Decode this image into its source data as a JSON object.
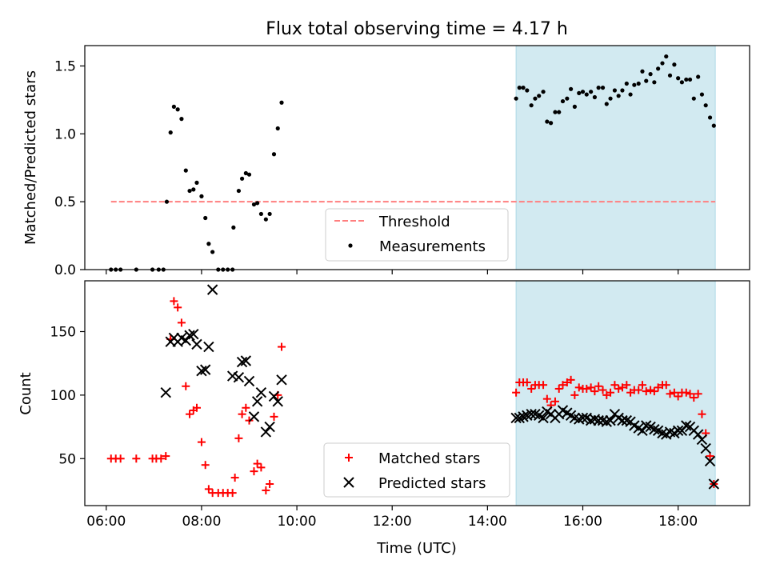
{
  "figure": {
    "title": "Flux total observing time = 4.17 h",
    "xlabel": "Time (UTC)"
  },
  "colors": {
    "shade": "#add8e6",
    "threshold": "#ff7f7f",
    "measurements": "#000000",
    "matched": "#ff0000",
    "predicted": "#000000"
  },
  "chart_data": [
    {
      "type": "scatter",
      "panel": "top",
      "title": "Flux total observing time = 4.17 h",
      "xlabel": "",
      "ylabel": "Matched/Predicted stars",
      "xlim": [
        5.55,
        19.5
      ],
      "ylim": [
        0.0,
        1.65
      ],
      "x_ticks": [
        6,
        8,
        10,
        12,
        14,
        16,
        18
      ],
      "x_tick_labels": [],
      "y_ticks": [
        0.0,
        0.5,
        1.0,
        1.5
      ],
      "y_tick_labels": [
        "0.0",
        "0.5",
        "1.0",
        "1.5"
      ],
      "grid": false,
      "legend_position": "lower-center",
      "shaded_span": [
        14.6,
        18.78
      ],
      "threshold": {
        "name": "Threshold",
        "x_range": [
          6.1,
          18.78
        ],
        "y": 0.5,
        "style": "dashed"
      },
      "series": [
        {
          "name": "Measurements",
          "marker": "dot",
          "points": [
            [
              6.1,
              0
            ],
            [
              6.2,
              0
            ],
            [
              6.3,
              0
            ],
            [
              6.63,
              0
            ],
            [
              6.97,
              0
            ],
            [
              7.1,
              0
            ],
            [
              7.2,
              0
            ],
            [
              7.27,
              0.5
            ],
            [
              7.35,
              1.01
            ],
            [
              7.42,
              1.2
            ],
            [
              7.5,
              1.18
            ],
            [
              7.58,
              1.11
            ],
            [
              7.67,
              0.73
            ],
            [
              7.75,
              0.58
            ],
            [
              7.83,
              0.59
            ],
            [
              7.9,
              0.64
            ],
            [
              8.0,
              0.54
            ],
            [
              8.08,
              0.38
            ],
            [
              8.15,
              0.19
            ],
            [
              8.23,
              0.13
            ],
            [
              8.35,
              0
            ],
            [
              8.45,
              0
            ],
            [
              8.55,
              0
            ],
            [
              8.65,
              0
            ],
            [
              8.67,
              0.31
            ],
            [
              8.78,
              0.58
            ],
            [
              8.85,
              0.67
            ],
            [
              8.93,
              0.71
            ],
            [
              9.0,
              0.7
            ],
            [
              9.1,
              0.48
            ],
            [
              9.17,
              0.49
            ],
            [
              9.25,
              0.41
            ],
            [
              9.35,
              0.37
            ],
            [
              9.43,
              0.41
            ],
            [
              9.52,
              0.85
            ],
            [
              9.6,
              1.04
            ],
            [
              9.68,
              1.23
            ],
            [
              14.6,
              1.26
            ],
            [
              14.67,
              1.34
            ],
            [
              14.75,
              1.34
            ],
            [
              14.83,
              1.32
            ],
            [
              14.92,
              1.21
            ],
            [
              15.0,
              1.26
            ],
            [
              15.08,
              1.28
            ],
            [
              15.17,
              1.31
            ],
            [
              15.25,
              1.09
            ],
            [
              15.33,
              1.08
            ],
            [
              15.42,
              1.16
            ],
            [
              15.5,
              1.16
            ],
            [
              15.58,
              1.24
            ],
            [
              15.67,
              1.26
            ],
            [
              15.75,
              1.33
            ],
            [
              15.83,
              1.2
            ],
            [
              15.92,
              1.3
            ],
            [
              16.0,
              1.31
            ],
            [
              16.08,
              1.29
            ],
            [
              16.17,
              1.31
            ],
            [
              16.25,
              1.27
            ],
            [
              16.33,
              1.34
            ],
            [
              16.42,
              1.34
            ],
            [
              16.5,
              1.22
            ],
            [
              16.58,
              1.26
            ],
            [
              16.67,
              1.32
            ],
            [
              16.75,
              1.28
            ],
            [
              16.83,
              1.32
            ],
            [
              16.92,
              1.37
            ],
            [
              17.0,
              1.29
            ],
            [
              17.08,
              1.36
            ],
            [
              17.17,
              1.37
            ],
            [
              17.25,
              1.46
            ],
            [
              17.33,
              1.39
            ],
            [
              17.42,
              1.44
            ],
            [
              17.5,
              1.38
            ],
            [
              17.58,
              1.48
            ],
            [
              17.67,
              1.52
            ],
            [
              17.75,
              1.57
            ],
            [
              17.83,
              1.43
            ],
            [
              17.92,
              1.51
            ],
            [
              18.0,
              1.41
            ],
            [
              18.08,
              1.38
            ],
            [
              18.17,
              1.4
            ],
            [
              18.25,
              1.4
            ],
            [
              18.33,
              1.26
            ],
            [
              18.42,
              1.42
            ],
            [
              18.5,
              1.29
            ],
            [
              18.58,
              1.21
            ],
            [
              18.67,
              1.12
            ],
            [
              18.75,
              1.06
            ]
          ]
        }
      ]
    },
    {
      "type": "scatter",
      "panel": "bottom",
      "xlabel": "Time (UTC)",
      "ylabel": "Count",
      "xlim": [
        5.55,
        19.5
      ],
      "ylim": [
        13,
        190
      ],
      "x_ticks": [
        6,
        8,
        10,
        12,
        14,
        16,
        18
      ],
      "x_tick_labels": [
        "06:00",
        "08:00",
        "10:00",
        "12:00",
        "14:00",
        "16:00",
        "18:00"
      ],
      "y_ticks": [
        50,
        100,
        150
      ],
      "y_tick_labels": [
        "50",
        "100",
        "150"
      ],
      "grid": false,
      "legend_position": "lower-center",
      "shaded_span": [
        14.6,
        18.78
      ],
      "series": [
        {
          "name": "Matched stars",
          "marker": "plus",
          "points": [
            [
              6.1,
              50
            ],
            [
              6.2,
              50
            ],
            [
              6.3,
              50
            ],
            [
              6.63,
              50
            ],
            [
              6.97,
              50
            ],
            [
              7.05,
              50
            ],
            [
              7.15,
              50
            ],
            [
              7.25,
              52
            ],
            [
              7.35,
              144
            ],
            [
              7.42,
              174
            ],
            [
              7.5,
              169
            ],
            [
              7.58,
              157
            ],
            [
              7.67,
              107
            ],
            [
              7.75,
              85
            ],
            [
              7.83,
              88
            ],
            [
              7.9,
              90
            ],
            [
              8.0,
              63
            ],
            [
              8.08,
              45
            ],
            [
              8.15,
              26
            ],
            [
              8.23,
              23
            ],
            [
              8.35,
              23
            ],
            [
              8.45,
              23
            ],
            [
              8.55,
              23
            ],
            [
              8.65,
              23
            ],
            [
              8.7,
              35
            ],
            [
              8.78,
              66
            ],
            [
              8.85,
              85
            ],
            [
              8.93,
              90
            ],
            [
              9.0,
              80
            ],
            [
              9.1,
              40
            ],
            [
              9.17,
              46
            ],
            [
              9.25,
              43
            ],
            [
              9.35,
              25
            ],
            [
              9.43,
              30
            ],
            [
              9.52,
              83
            ],
            [
              9.6,
              100
            ],
            [
              9.68,
              138
            ],
            [
              14.6,
              102
            ],
            [
              14.67,
              110
            ],
            [
              14.75,
              110
            ],
            [
              14.83,
              110
            ],
            [
              14.92,
              105
            ],
            [
              15.0,
              108
            ],
            [
              15.08,
              108
            ],
            [
              15.17,
              108
            ],
            [
              15.25,
              97
            ],
            [
              15.33,
              92
            ],
            [
              15.42,
              95
            ],
            [
              15.5,
              105
            ],
            [
              15.58,
              108
            ],
            [
              15.67,
              110
            ],
            [
              15.75,
              112
            ],
            [
              15.83,
              100
            ],
            [
              15.92,
              106
            ],
            [
              16.0,
              105
            ],
            [
              16.08,
              105
            ],
            [
              16.17,
              106
            ],
            [
              16.25,
              103
            ],
            [
              16.33,
              107
            ],
            [
              16.42,
              104
            ],
            [
              16.5,
              100
            ],
            [
              16.58,
              102
            ],
            [
              16.67,
              108
            ],
            [
              16.75,
              105
            ],
            [
              16.83,
              106
            ],
            [
              16.92,
              108
            ],
            [
              17.0,
              102
            ],
            [
              17.08,
              104
            ],
            [
              17.17,
              104
            ],
            [
              17.25,
              108
            ],
            [
              17.33,
              103
            ],
            [
              17.42,
              104
            ],
            [
              17.5,
              103
            ],
            [
              17.58,
              106
            ],
            [
              17.67,
              108
            ],
            [
              17.75,
              108
            ],
            [
              17.83,
              101
            ],
            [
              17.92,
              102
            ],
            [
              18.0,
              99
            ],
            [
              18.08,
              102
            ],
            [
              18.17,
              102
            ],
            [
              18.25,
              101
            ],
            [
              18.33,
              98
            ],
            [
              18.42,
              101
            ],
            [
              18.5,
              85
            ],
            [
              18.58,
              70
            ],
            [
              18.67,
              52
            ],
            [
              18.75,
              30
            ]
          ]
        },
        {
          "name": "Predicted stars",
          "marker": "x",
          "points": [
            [
              7.25,
              102
            ],
            [
              7.35,
              142
            ],
            [
              7.42,
              145
            ],
            [
              7.5,
              142
            ],
            [
              7.58,
              145
            ],
            [
              7.67,
              143
            ],
            [
              7.75,
              147
            ],
            [
              7.83,
              148
            ],
            [
              7.9,
              140
            ],
            [
              8.0,
              119
            ],
            [
              8.08,
              120
            ],
            [
              8.15,
              138
            ],
            [
              8.23,
              183
            ],
            [
              8.65,
              115
            ],
            [
              8.78,
              114
            ],
            [
              8.85,
              126
            ],
            [
              8.93,
              127
            ],
            [
              9.0,
              111
            ],
            [
              9.1,
              83
            ],
            [
              9.17,
              95
            ],
            [
              9.25,
              102
            ],
            [
              9.35,
              71
            ],
            [
              9.43,
              75
            ],
            [
              9.52,
              99
            ],
            [
              9.6,
              95
            ],
            [
              9.68,
              112
            ],
            [
              14.6,
              82
            ],
            [
              14.67,
              82
            ],
            [
              14.75,
              83
            ],
            [
              14.83,
              84
            ],
            [
              14.92,
              85
            ],
            [
              15.0,
              85
            ],
            [
              15.08,
              84
            ],
            [
              15.17,
              82
            ],
            [
              15.25,
              87
            ],
            [
              15.33,
              85
            ],
            [
              15.42,
              82
            ],
            [
              15.5,
              85
            ],
            [
              15.58,
              88
            ],
            [
              15.67,
              86
            ],
            [
              15.75,
              84
            ],
            [
              15.83,
              82
            ],
            [
              15.92,
              81
            ],
            [
              16.0,
              82
            ],
            [
              16.08,
              82
            ],
            [
              16.17,
              80
            ],
            [
              16.25,
              81
            ],
            [
              16.33,
              80
            ],
            [
              16.42,
              80
            ],
            [
              16.5,
              79
            ],
            [
              16.58,
              80
            ],
            [
              16.67,
              85
            ],
            [
              16.75,
              82
            ],
            [
              16.83,
              80
            ],
            [
              16.92,
              80
            ],
            [
              17.0,
              79
            ],
            [
              17.08,
              76
            ],
            [
              17.17,
              74
            ],
            [
              17.25,
              72
            ],
            [
              17.33,
              76
            ],
            [
              17.42,
              75
            ],
            [
              17.5,
              73
            ],
            [
              17.58,
              72
            ],
            [
              17.67,
              70
            ],
            [
              17.75,
              69
            ],
            [
              17.83,
              71
            ],
            [
              17.92,
              70
            ],
            [
              18.0,
              72
            ],
            [
              18.08,
              72
            ],
            [
              18.17,
              76
            ],
            [
              18.25,
              75
            ],
            [
              18.33,
              72
            ],
            [
              18.42,
              69
            ],
            [
              18.5,
              65
            ],
            [
              18.58,
              58
            ],
            [
              18.67,
              48
            ],
            [
              18.75,
              30
            ]
          ]
        }
      ]
    }
  ]
}
